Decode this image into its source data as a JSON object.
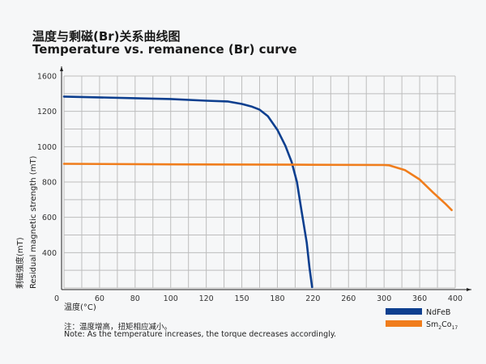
{
  "title_cn": "温度与剩磁(Br)关系曲线图",
  "title_en": "Temperature vs. remanence (Br) curve",
  "note_cn": "注：温度增高，扭矩相应减小。",
  "note_en": "Note: As the temperature increases, the torque decreases accordingly.",
  "chart_data": {
    "type": "line",
    "xlabel": "温度(°C)",
    "ylabel_cn": "剩磁强度(mT)",
    "ylabel_en": "Residual magnetic strength (mT)",
    "origin_label": "0",
    "xticks": [
      0,
      60,
      80,
      100,
      120,
      150,
      180,
      220,
      260,
      300,
      360,
      400
    ],
    "xtick_labels": [
      "0",
      "60",
      "80",
      "100",
      "120",
      "150",
      "180",
      "220",
      "260",
      "300",
      "360",
      "400"
    ],
    "yticks": [
      0,
      400,
      600,
      800,
      1000,
      1200,
      1600
    ],
    "ytick_labels": [
      "",
      "400",
      "600",
      "800",
      "1000",
      "1200",
      "1600"
    ],
    "xlim": [
      0,
      400
    ],
    "ylim": [
      0,
      1600
    ],
    "grid": true,
    "legend": "bottom-right",
    "series": [
      {
        "name": "NdFeB",
        "label_main": "NdFeB",
        "color": "#0d3f8f",
        "x": [
          0,
          60,
          80,
          100,
          120,
          138,
          150,
          158,
          165,
          172,
          180,
          189,
          196,
          202,
          207,
          213,
          216,
          219
        ],
        "y": [
          1367,
          1358,
          1349,
          1340,
          1321,
          1312,
          1284,
          1256,
          1219,
          1173,
          1095,
          1005,
          914,
          800,
          641,
          456,
          236,
          9
        ]
      },
      {
        "name": "Sm2Co17",
        "label_main": "Sm",
        "sub1": "2",
        "label_mid": "Co",
        "sub2": "17",
        "color": "#f07d1c",
        "x": [
          0,
          100,
          200,
          300,
          308,
          335,
          360,
          375,
          389,
          396
        ],
        "y": [
          903,
          900,
          898,
          896,
          895,
          868,
          814,
          741,
          677,
          641
        ]
      }
    ]
  }
}
